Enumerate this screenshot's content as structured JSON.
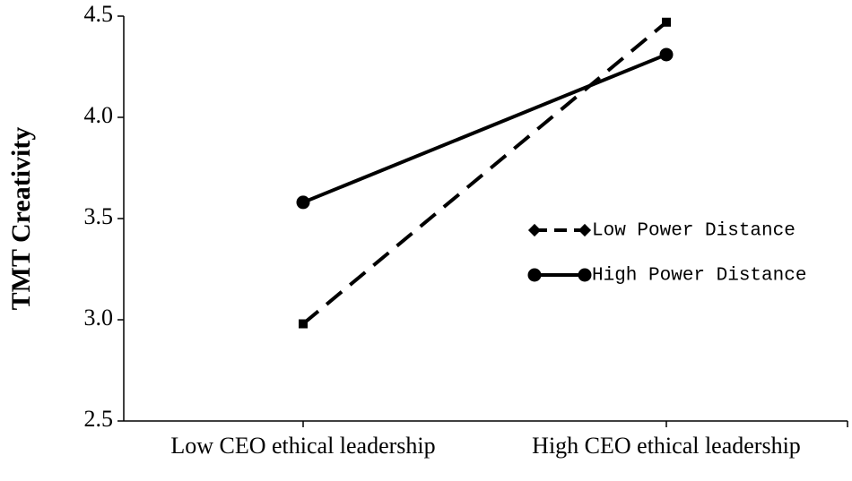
{
  "chart_data": {
    "type": "line",
    "y_label": "TMT Creativity",
    "categories": [
      "Low CEO ethical leadership",
      "High CEO ethical leadership"
    ],
    "series": [
      {
        "name": "Low Power Distance",
        "color": "#000000",
        "line_style": "dashed",
        "marker": "square",
        "values": [
          2.98,
          4.47
        ]
      },
      {
        "name": "High Power Distance",
        "color": "#000000",
        "line_style": "solid",
        "marker": "circle",
        "values": [
          3.58,
          4.31
        ]
      }
    ],
    "ylim": [
      2.5,
      4.5
    ],
    "yticks": [
      2.5,
      {
        "value": 3,
        "label": "3.0"
      },
      3.5,
      {
        "value": 4,
        "label": "4.0"
      },
      4.5
    ],
    "grid": false,
    "legend": "right"
  }
}
